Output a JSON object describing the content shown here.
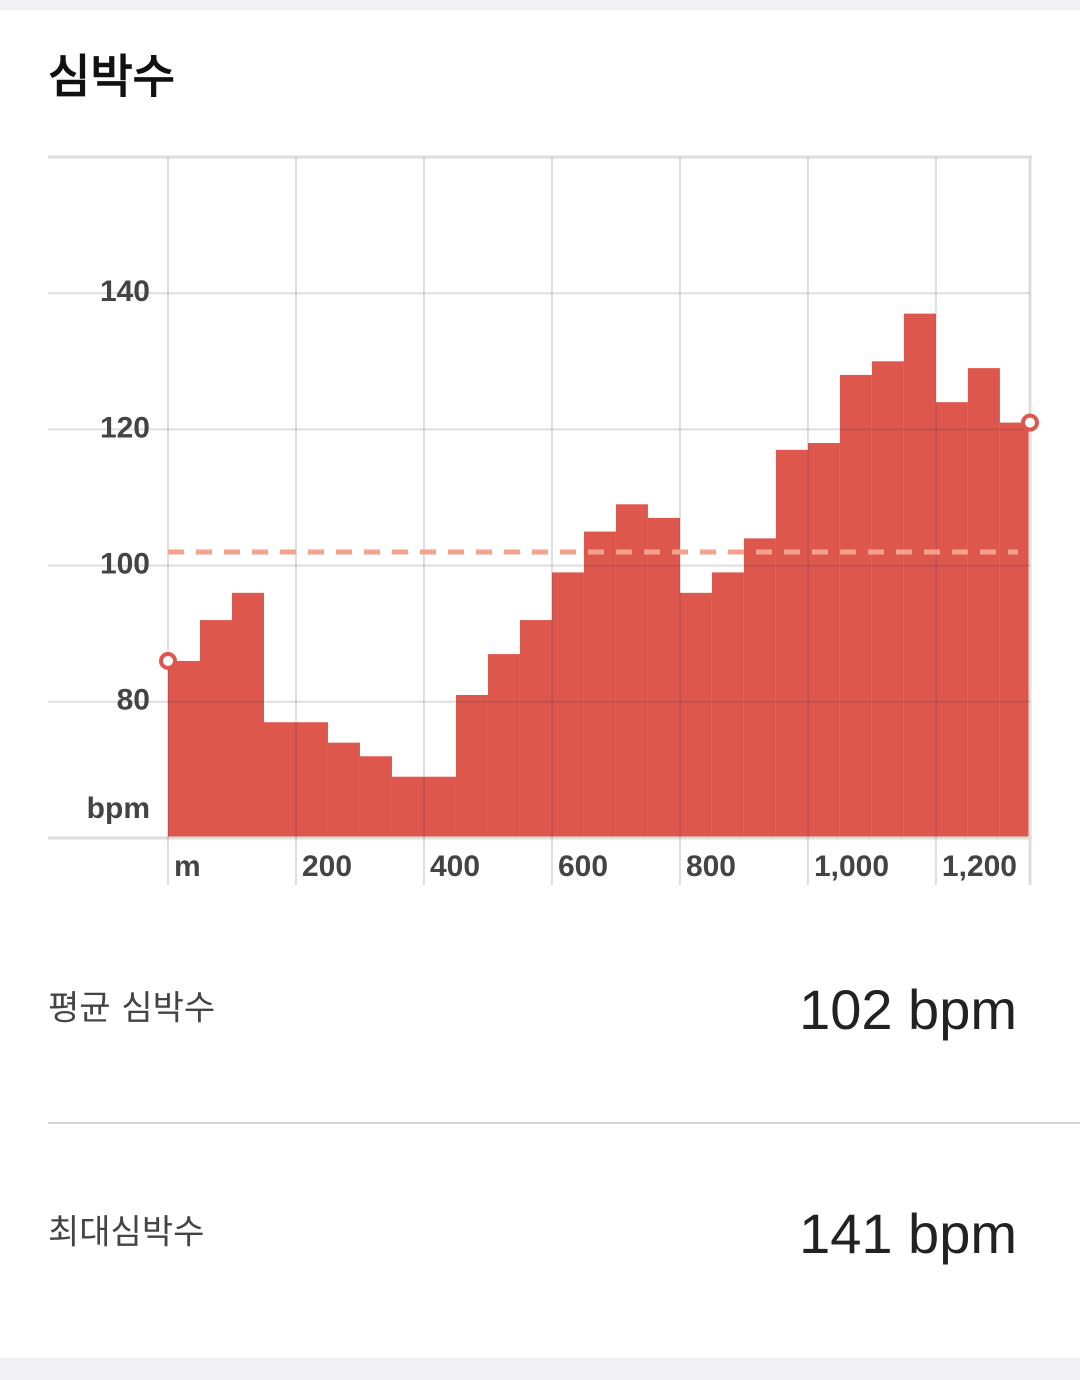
{
  "header": {
    "title": "심박수"
  },
  "chart_data": {
    "type": "histogram",
    "bins": [
      0,
      50,
      100,
      150,
      200,
      250,
      300,
      350,
      400,
      450,
      500,
      550,
      600,
      650,
      700,
      750,
      800,
      850,
      900,
      950,
      1000,
      1050,
      1100,
      1150,
      1200,
      1250,
      1300,
      1347
    ],
    "values": [
      86,
      92,
      96,
      77,
      77,
      74,
      72,
      69,
      69,
      81,
      87,
      92,
      99,
      105,
      109,
      107,
      96,
      99,
      104,
      117,
      118,
      128,
      130,
      137,
      124,
      129,
      121
    ],
    "color": "#de574c",
    "average_line": 102,
    "average_color": "#f4a28c",
    "xlim": [
      0,
      1347
    ],
    "ylim": [
      60,
      160
    ],
    "xticks": [
      {
        "value": 0,
        "label": "m"
      },
      200,
      400,
      600,
      800,
      {
        "value": 1000,
        "label": "1,000"
      },
      {
        "value": 1200,
        "label": "1,200"
      }
    ],
    "yticks": [
      80,
      100,
      120,
      140
    ],
    "y_label": "bpm",
    "grid": true
  },
  "stats": [
    {
      "label": "평균 심박수",
      "value": "102 bpm"
    },
    {
      "label": "최대심박수",
      "value": "141 bpm"
    }
  ]
}
